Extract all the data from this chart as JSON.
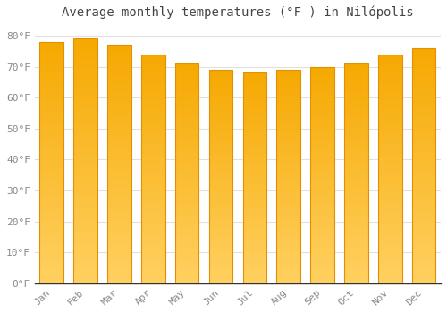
{
  "title": "Average monthly temperatures (°F ) in Nilópolis",
  "months": [
    "Jan",
    "Feb",
    "Mar",
    "Apr",
    "May",
    "Jun",
    "Jul",
    "Aug",
    "Sep",
    "Oct",
    "Nov",
    "Dec"
  ],
  "values": [
    78,
    79,
    77,
    74,
    71,
    69,
    68,
    69,
    70,
    71,
    74,
    76
  ],
  "bar_color_top": "#F5A800",
  "bar_color_bottom": "#FFD060",
  "bar_edge_color": "#E09000",
  "background_color": "#FFFFFF",
  "grid_color": "#E0E0E0",
  "yticks": [
    0,
    10,
    20,
    30,
    40,
    50,
    60,
    70,
    80
  ],
  "ylim": [
    0,
    83
  ],
  "title_fontsize": 10,
  "tick_fontsize": 8,
  "ylabel_format": "{0}°F"
}
